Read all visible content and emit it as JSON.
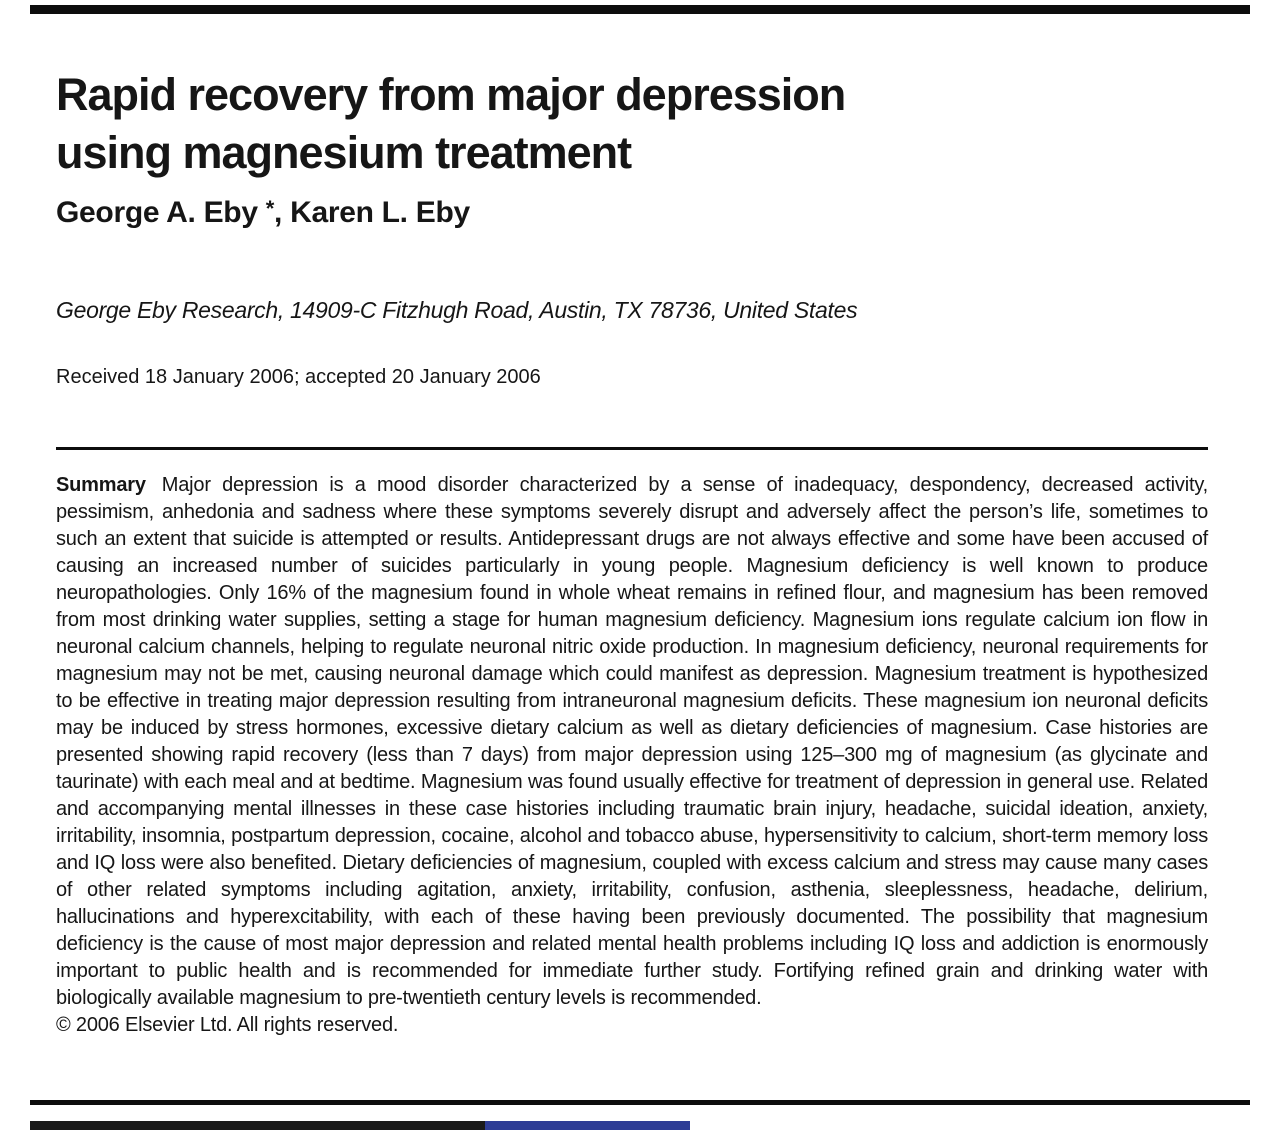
{
  "paper": {
    "title_lines": {
      "0": "Rapid recovery from major depression",
      "1": "using magnesium treatment"
    },
    "authors": {
      "first": "George A. Eby ",
      "asterisk": "*",
      "rest": ", Karen L. Eby"
    },
    "affiliation": "George Eby Research, 14909-C Fitzhugh Road, Austin, TX 78736, United States",
    "dateline": "Received 18 January 2006; accepted 20 January 2006",
    "summary": {
      "label": "Summary",
      "body": "Major depression is a mood disorder characterized by a sense of inadequacy, despondency, decreased activity, pessimism, anhedonia and sadness where these symptoms severely disrupt and adversely affect the person’s life, sometimes to such an extent that suicide is attempted or results. Antidepressant drugs are not always effective and some have been accused of causing an increased number of suicides particularly in young people. Magnesium deficiency is well known to produce neuropathologies. Only 16% of the magnesium found in whole wheat remains in refined flour, and magnesium has been removed from most drinking water supplies, setting a stage for human magnesium deficiency. Magnesium ions regulate calcium ion flow in neuronal calcium channels, helping to regulate neuronal nitric oxide production. In magnesium deficiency, neuronal requirements for magnesium may not be met, causing neuronal damage which could manifest as depression. Magnesium treatment is hypothesized to be effective in treating major depression resulting from intraneuronal magnesium deficits. These magnesium ion neuronal deficits may be induced by stress hormones, excessive dietary calcium as well as dietary deficiencies of magnesium. Case histories are presented showing rapid recovery (less than 7 days) from major depression using 125–300 mg of magnesium (as glycinate and taurinate) with each meal and at bedtime. Magnesium was found usually effective for treatment of depression in general use. Related and accompanying mental illnesses in these case histories including traumatic brain injury, headache, suicidal ideation, anxiety, irritability, insomnia, postpartum depression, cocaine, alcohol and tobacco abuse, hypersensitivity to calcium, short-term memory loss and IQ loss were also benefited. Dietary deficiencies of magnesium, coupled with excess calcium and stress may cause many cases of other related symptoms including agitation, anxiety, irritability, confusion, asthenia, sleeplessness, headache, delirium, hallucinations and hyperexcitability, with each of these having been previously documented. The possibility that magnesium deficiency is the cause of most major depression and related mental health problems including IQ loss and addiction is enormously important to public health and is recommended for immediate further study. Fortifying refined grain and drinking water with biologically available magnesium to pre-twentieth century levels is recommended."
    },
    "copyright": "© 2006 Elsevier Ltd. All rights reserved."
  },
  "colors": {
    "ink": "#161616",
    "rule": "#0d0d0d",
    "link_blue": "#2e3d96"
  }
}
